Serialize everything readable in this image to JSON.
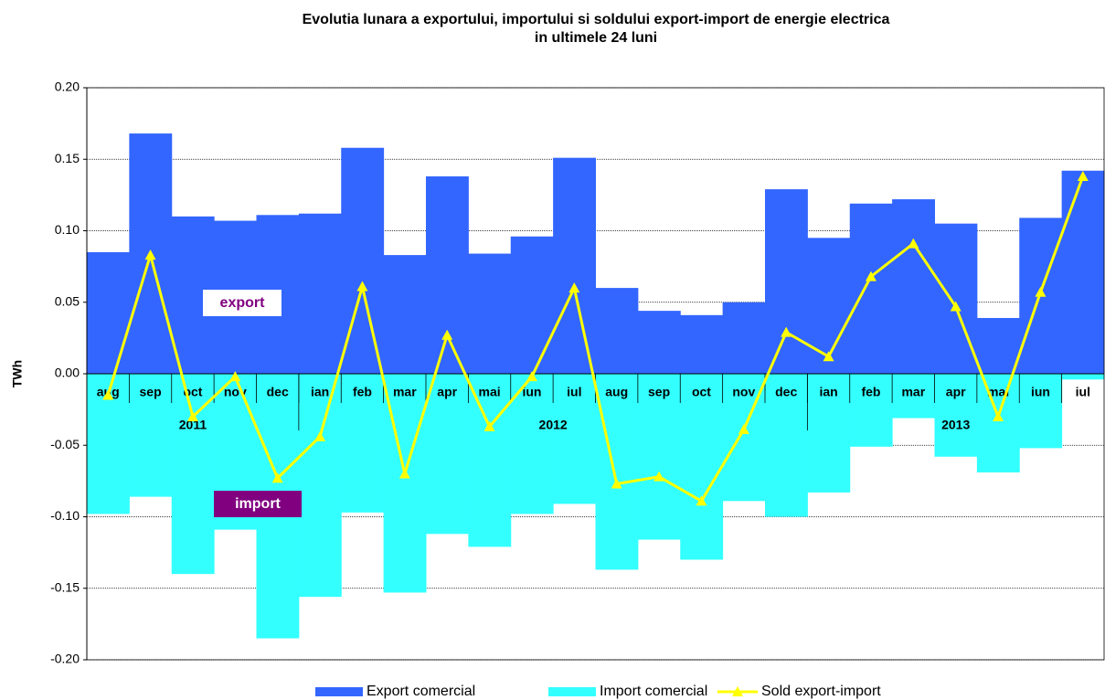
{
  "chart_data": {
    "type": "bar_line",
    "title": "Evolutia lunara a exportului, importului si soldului export-import de energie electrica",
    "subtitle": "in ultimele 24 luni",
    "ylabel": "TWh",
    "categories": [
      "aug",
      "sep",
      "oct",
      "nov",
      "dec",
      "ian",
      "feb",
      "mar",
      "apr",
      "mai",
      "iun",
      "iul",
      "aug",
      "sep",
      "oct",
      "nov",
      "dec",
      "ian",
      "feb",
      "mar",
      "apr",
      "mai",
      "iun",
      "iul"
    ],
    "x_groups": [
      {
        "label": "2011",
        "count": 5
      },
      {
        "label": "2012",
        "count": 12
      },
      {
        "label": "2013",
        "count": 7
      }
    ],
    "series": [
      {
        "name": "Export comercial",
        "color": "#3366ff",
        "kind": "bar",
        "values": [
          0.085,
          0.168,
          0.11,
          0.107,
          0.111,
          0.112,
          0.158,
          0.083,
          0.138,
          0.084,
          0.096,
          0.151,
          0.06,
          0.044,
          0.041,
          0.05,
          0.129,
          0.095,
          0.119,
          0.122,
          0.105,
          0.039,
          0.109,
          0.142
        ]
      },
      {
        "name": "Import comercial",
        "color": "#33ffff",
        "kind": "bar",
        "values": [
          -0.098,
          -0.086,
          -0.14,
          -0.109,
          -0.185,
          -0.156,
          -0.097,
          -0.153,
          -0.112,
          -0.121,
          -0.098,
          -0.091,
          -0.137,
          -0.116,
          -0.13,
          -0.089,
          -0.1,
          -0.083,
          -0.051,
          -0.031,
          -0.058,
          -0.069,
          -0.052,
          -0.004
        ]
      },
      {
        "name": "Sold export-import",
        "color": "#ffff00",
        "kind": "line",
        "values": [
          -0.015,
          0.083,
          -0.03,
          -0.002,
          -0.073,
          -0.044,
          0.061,
          -0.07,
          0.027,
          -0.037,
          -0.002,
          0.06,
          -0.077,
          -0.072,
          -0.089,
          -0.039,
          0.029,
          0.012,
          0.068,
          0.091,
          0.047,
          -0.03,
          0.057,
          0.138
        ]
      }
    ],
    "annotations": [
      {
        "text": "export",
        "series": 0
      },
      {
        "text": "import",
        "series": 1
      }
    ],
    "ylim": [
      -0.2,
      0.2
    ],
    "yticks": [
      {
        "value": -0.2,
        "label": "-0.20"
      },
      {
        "value": -0.15,
        "label": "-0.15"
      },
      {
        "value": -0.1,
        "label": "-0.10"
      },
      {
        "value": -0.05,
        "label": "-0.05"
      },
      {
        "value": 0,
        "label": "0.00"
      },
      {
        "value": 0.05,
        "label": "0.05"
      },
      {
        "value": 0.1,
        "label": "0.10"
      },
      {
        "value": 0.15,
        "label": "0.15"
      },
      {
        "value": 0.2,
        "label": "0.20"
      }
    ],
    "grid": true,
    "legend": "bottom"
  }
}
